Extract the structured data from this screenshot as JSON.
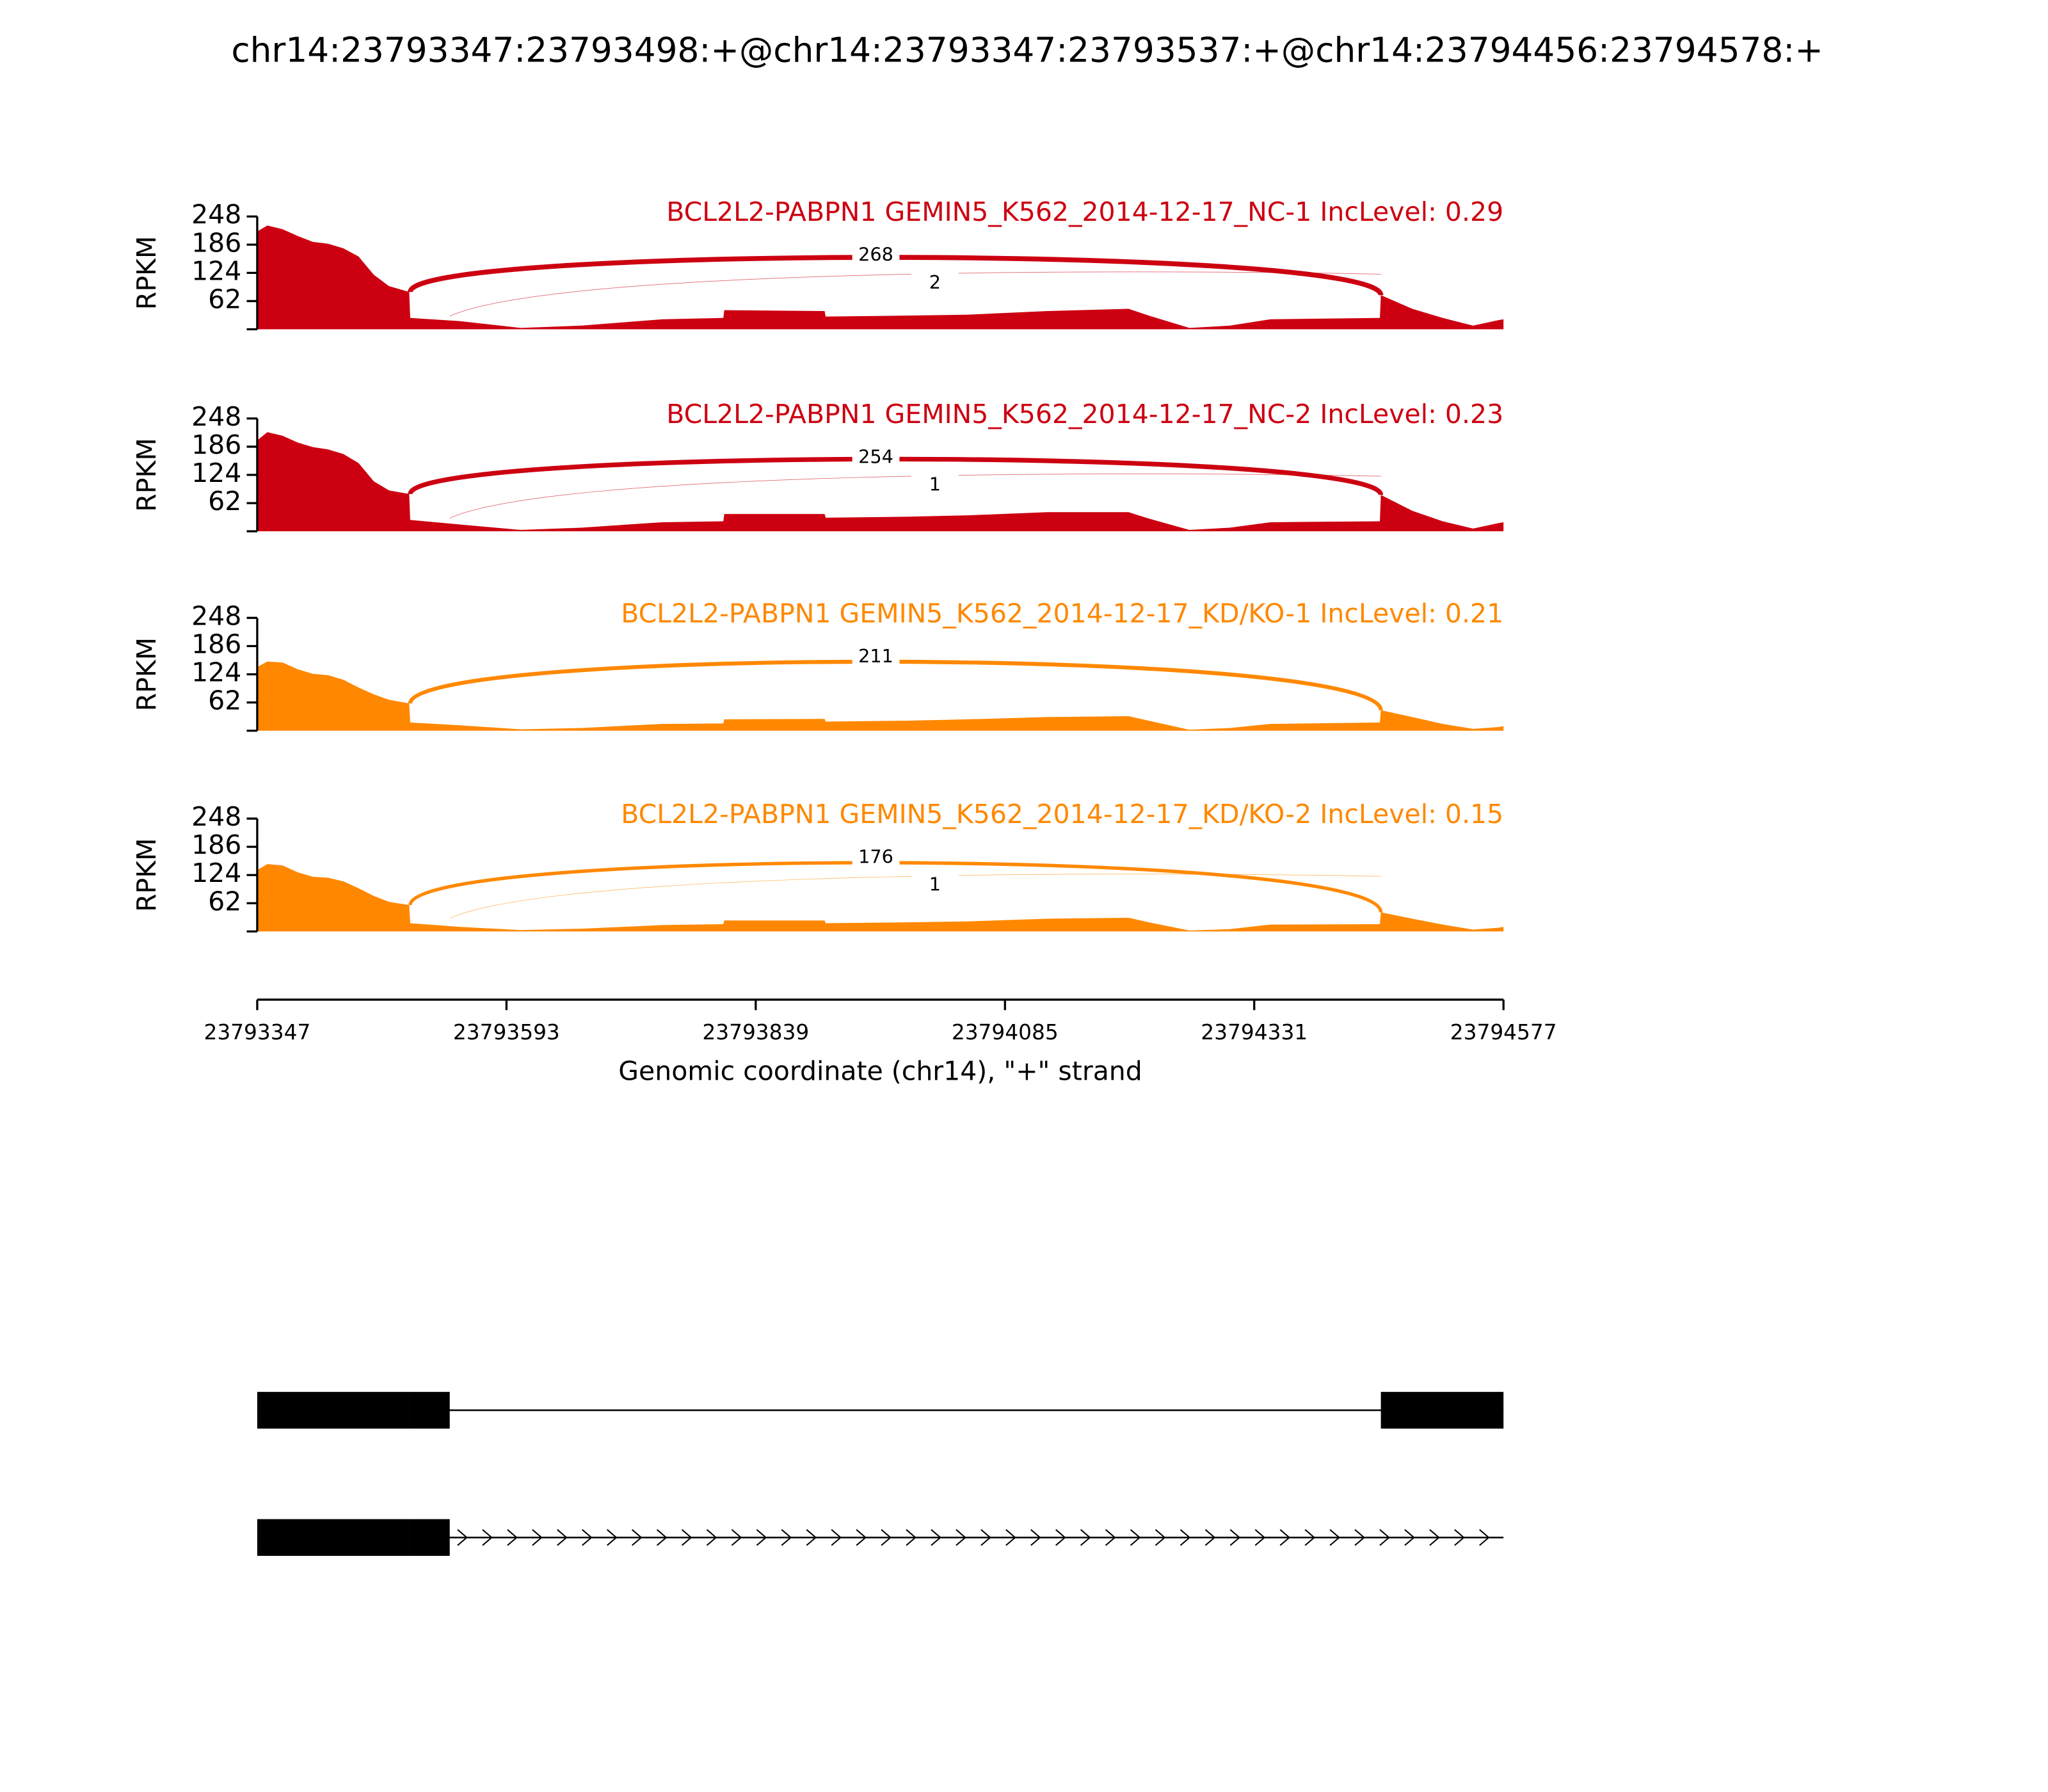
{
  "title": "chr14:23793347:23793498:+@chr14:23793347:23793537:+@chr14:23794456:23794578:+",
  "x_axis": {
    "label": "Genomic coordinate (chr14), \"+\" strand",
    "xlim": [
      23793347,
      23794577
    ],
    "xticks": [
      23793347,
      23793593,
      23793839,
      23794085,
      23794331,
      23794577
    ]
  },
  "chart_data": [
    {
      "type": "area",
      "title": "BCL2L2-PABPN1 GEMIN5_K562_2014-12-17_NC-1 IncLevel: 0.29",
      "color": "#cc0011",
      "y_label": "RPKM",
      "ylim": [
        0,
        248
      ],
      "yticks": [
        62,
        124,
        186,
        248
      ],
      "x": [
        23793347,
        23793357,
        23793372,
        23793387,
        23793402,
        23793417,
        23793432,
        23793447,
        23793462,
        23793477,
        23793497,
        23793498,
        23793547,
        23793607,
        23793667,
        23793747,
        23793807,
        23793808,
        23793907,
        23793908,
        23793987,
        23794047,
        23794127,
        23794207,
        23794227,
        23794267,
        23794307,
        23794347,
        23794455,
        23794456,
        23794487,
        23794517,
        23794547,
        23794572,
        23794577
      ],
      "values": [
        215,
        228,
        220,
        205,
        192,
        188,
        178,
        160,
        120,
        95,
        82,
        25,
        18,
        3,
        8,
        22,
        25,
        42,
        40,
        28,
        30,
        32,
        40,
        45,
        30,
        3,
        8,
        22,
        25,
        75,
        45,
        25,
        8,
        20,
        22
      ],
      "junctions": [
        {
          "start": 23793498,
          "end": 23794456,
          "count": 268
        },
        {
          "start": 23793537,
          "end": 23794456,
          "count": 2
        }
      ]
    },
    {
      "type": "area",
      "title": "BCL2L2-PABPN1 GEMIN5_K562_2014-12-17_NC-2 IncLevel: 0.23",
      "color": "#cc0011",
      "y_label": "RPKM",
      "ylim": [
        0,
        248
      ],
      "yticks": [
        62,
        124,
        186,
        248
      ],
      "x": [
        23793347,
        23793357,
        23793372,
        23793387,
        23793402,
        23793417,
        23793432,
        23793447,
        23793462,
        23793477,
        23793497,
        23793498,
        23793547,
        23793607,
        23793667,
        23793747,
        23793807,
        23793808,
        23793907,
        23793908,
        23793987,
        23794047,
        23794127,
        23794207,
        23794227,
        23794267,
        23794307,
        23794347,
        23794455,
        23794456,
        23794487,
        23794517,
        23794547,
        23794572,
        23794577
      ],
      "values": [
        200,
        218,
        210,
        195,
        185,
        180,
        170,
        150,
        110,
        90,
        82,
        25,
        15,
        3,
        8,
        20,
        22,
        38,
        38,
        30,
        32,
        35,
        42,
        42,
        28,
        3,
        8,
        20,
        22,
        80,
        45,
        22,
        6,
        18,
        20
      ],
      "junctions": [
        {
          "start": 23793498,
          "end": 23794456,
          "count": 254
        },
        {
          "start": 23793537,
          "end": 23794456,
          "count": 1
        }
      ]
    },
    {
      "type": "area",
      "title": "BCL2L2-PABPN1 GEMIN5_K562_2014-12-17_KD/KO-1 IncLevel: 0.21",
      "color": "#ff8800",
      "y_label": "RPKM",
      "ylim": [
        0,
        248
      ],
      "yticks": [
        62,
        124,
        186,
        248
      ],
      "x": [
        23793347,
        23793357,
        23793372,
        23793387,
        23793402,
        23793417,
        23793432,
        23793447,
        23793462,
        23793477,
        23793497,
        23793498,
        23793547,
        23793607,
        23793667,
        23793747,
        23793807,
        23793808,
        23793907,
        23793908,
        23793987,
        23794047,
        23794127,
        23794207,
        23794227,
        23794267,
        23794307,
        23794347,
        23794455,
        23794456,
        23794487,
        23794517,
        23794547,
        23794572,
        23794577
      ],
      "values": [
        140,
        152,
        150,
        135,
        125,
        122,
        112,
        95,
        80,
        68,
        60,
        18,
        12,
        3,
        6,
        15,
        16,
        25,
        26,
        20,
        22,
        25,
        30,
        32,
        22,
        2,
        6,
        15,
        18,
        45,
        30,
        15,
        4,
        8,
        10
      ],
      "junctions": [
        {
          "start": 23793498,
          "end": 23794456,
          "count": 211
        }
      ]
    },
    {
      "type": "area",
      "title": "BCL2L2-PABPN1 GEMIN5_K562_2014-12-17_KD/KO-2 IncLevel: 0.15",
      "color": "#ff8800",
      "y_label": "RPKM",
      "ylim": [
        0,
        248
      ],
      "yticks": [
        62,
        124,
        186,
        248
      ],
      "x": [
        23793347,
        23793357,
        23793372,
        23793387,
        23793402,
        23793417,
        23793432,
        23793447,
        23793462,
        23793477,
        23793497,
        23793498,
        23793547,
        23793607,
        23793667,
        23793747,
        23793807,
        23793808,
        23793907,
        23793908,
        23793987,
        23794047,
        23794127,
        23794207,
        23794227,
        23794267,
        23794307,
        23794347,
        23794455,
        23794456,
        23794487,
        23794517,
        23794547,
        23794572,
        23794577
      ],
      "values": [
        135,
        148,
        145,
        130,
        120,
        118,
        110,
        95,
        78,
        65,
        58,
        18,
        10,
        3,
        6,
        14,
        16,
        24,
        24,
        18,
        20,
        22,
        28,
        30,
        20,
        2,
        5,
        15,
        16,
        42,
        28,
        15,
        4,
        8,
        10
      ],
      "junctions": [
        {
          "start": 23793498,
          "end": 23794456,
          "count": 176
        },
        {
          "start": 23793537,
          "end": 23794456,
          "count": 1
        }
      ]
    }
  ],
  "gene_model": {
    "transcripts": [
      {
        "start": 23793347,
        "end": 23794577,
        "exons": [
          [
            23793347,
            23793498
          ],
          [
            23793498,
            23793537
          ],
          [
            23794456,
            23794577
          ]
        ]
      },
      {
        "start": 23793347,
        "end": 23794577,
        "exons": [
          [
            23793347,
            23793498
          ],
          [
            23793498,
            23793537
          ]
        ]
      }
    ]
  }
}
